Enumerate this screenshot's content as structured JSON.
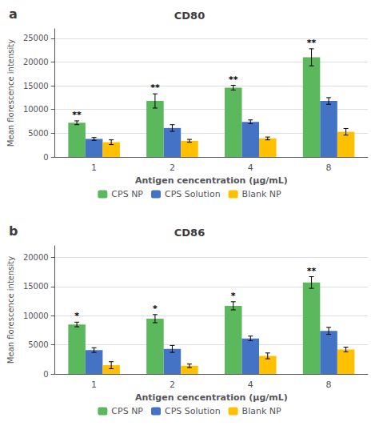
{
  "chart_data": [
    {
      "type": "bar",
      "panel_label": "a",
      "title": "CD80",
      "xlabel": "Antigen cencentration (μg/mL)",
      "ylabel": "Mean florescence intensity",
      "categories": [
        "1",
        "2",
        "4",
        "8"
      ],
      "series": [
        {
          "name": "CPS NP",
          "color": "#5cb85c",
          "values": [
            7200,
            11800,
            14600,
            21000
          ],
          "errors": [
            400,
            1500,
            500,
            1800
          ],
          "sig_labels": [
            "**",
            "**",
            "**",
            "**"
          ]
        },
        {
          "name": "CPS Solution",
          "color": "#4472c4",
          "values": [
            3800,
            6100,
            7400,
            11800
          ],
          "errors": [
            300,
            700,
            400,
            700
          ]
        },
        {
          "name": "Blank NP",
          "color": "#ffc000",
          "values": [
            3100,
            3400,
            3900,
            5300
          ],
          "errors": [
            500,
            300,
            300,
            700
          ]
        }
      ],
      "ylim": [
        0,
        27000
      ],
      "yticks": [
        0,
        5000,
        10000,
        15000,
        20000,
        25000
      ],
      "grid": true,
      "legend": "bottom"
    },
    {
      "type": "bar",
      "panel_label": "b",
      "title": "CD86",
      "xlabel": "Antigen cencentration (μg/mL)",
      "ylabel": "Mean florescence intensity",
      "categories": [
        "1",
        "2",
        "4",
        "8"
      ],
      "series": [
        {
          "name": "CPS NP",
          "color": "#5cb85c",
          "values": [
            8500,
            9500,
            11700,
            15700
          ],
          "errors": [
            400,
            700,
            700,
            1000
          ],
          "sig_labels": [
            "*",
            "*",
            "*",
            "**"
          ]
        },
        {
          "name": "CPS Solution",
          "color": "#4472c4",
          "values": [
            4100,
            4300,
            6100,
            7400
          ],
          "errors": [
            400,
            600,
            400,
            600
          ]
        },
        {
          "name": "Blank NP",
          "color": "#ffc000",
          "values": [
            1500,
            1400,
            3100,
            4200
          ],
          "errors": [
            600,
            300,
            500,
            400
          ]
        }
      ],
      "ylim": [
        0,
        22000
      ],
      "yticks": [
        0,
        5000,
        10000,
        15000,
        20000
      ],
      "grid": true,
      "legend": "bottom"
    }
  ]
}
